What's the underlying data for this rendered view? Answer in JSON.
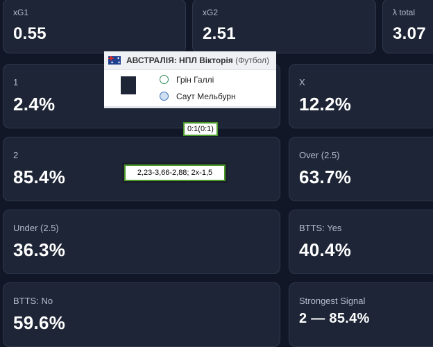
{
  "stats": {
    "xg1": {
      "label": "xG1",
      "value": "0.55"
    },
    "xg2": {
      "label": "xG2",
      "value": "2.51"
    },
    "lambda_total": {
      "label": "λ total",
      "value": "3.07"
    }
  },
  "outcomes": [
    {
      "label": "1",
      "value": "2.4%"
    },
    {
      "label": "X",
      "value": "12.2%"
    },
    {
      "label": "2",
      "value": "85.4%"
    },
    {
      "label": "Over (2.5)",
      "value": "63.7%"
    },
    {
      "label": "Under (2.5)",
      "value": "36.3%"
    },
    {
      "label": "BTTS: Yes",
      "value": "40.4%"
    },
    {
      "label": "BTTS: No",
      "value": "59.6%"
    },
    {
      "label": "Strongest Signal",
      "value": "2 — 85.4%"
    }
  ],
  "popup": {
    "league": "АВСТРАЛІЯ: НПЛ Вікторія",
    "sport": "(Футбол)",
    "team_home": "Грін Галлі",
    "team_away": "Саут Мельбурн",
    "flag_icon": "australia-flag-icon"
  },
  "score": "0:1(0:1)",
  "odds_text": "2,23-3,66-2,88; 2x-1,5",
  "colors": {
    "background": "#111726",
    "card": "#1d2536",
    "highlight_border": "#4c9a2a"
  }
}
